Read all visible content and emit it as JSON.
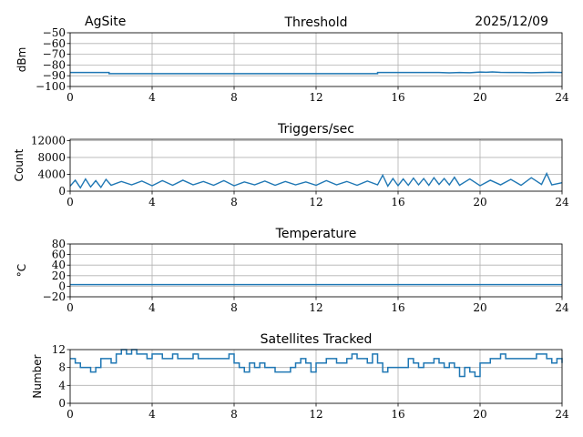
{
  "header": {
    "site": "AgSite",
    "date": "2025/12/09"
  },
  "colors": {
    "line": "#1f77b4",
    "grid": "#b0b0b0"
  },
  "chart_data": [
    {
      "type": "line",
      "title": "Threshold",
      "ylabel": "dBm",
      "xlim": [
        0,
        24
      ],
      "ylim": [
        -100,
        -50
      ],
      "grid": true,
      "xticks": [
        0,
        4,
        8,
        12,
        16,
        20,
        24
      ],
      "yticks": [
        -100,
        -90,
        -80,
        -70,
        -60,
        -50
      ],
      "ytick_labels": [
        "−100",
        "−90",
        "−80",
        "−70",
        "−60",
        "−50"
      ],
      "x": [
        0,
        1.9,
        1.9,
        15,
        15,
        18,
        18.5,
        19,
        19.5,
        20,
        20.3,
        20.6,
        21,
        21.5,
        22,
        22.5,
        23,
        23.5,
        24
      ],
      "values": [
        -87,
        -87,
        -88,
        -88,
        -87,
        -87,
        -87.3,
        -87,
        -87.2,
        -86.5,
        -86.8,
        -86.4,
        -86.9,
        -87,
        -87,
        -87.2,
        -87,
        -86.8,
        -87
      ]
    },
    {
      "type": "line",
      "title": "Triggers/sec",
      "ylabel": "Count",
      "xlim": [
        0,
        24
      ],
      "ylim": [
        0,
        12300
      ],
      "grid": true,
      "xticks": [
        0,
        4,
        8,
        12,
        16,
        20,
        24
      ],
      "yticks": [
        0,
        4000,
        8000,
        12000
      ],
      "ytick_labels": [
        "0",
        "4000",
        "8000",
        "12000"
      ],
      "x": [
        0,
        0.25,
        0.5,
        0.75,
        1,
        1.25,
        1.5,
        1.75,
        2,
        2.5,
        3,
        3.5,
        4,
        4.5,
        5,
        5.5,
        6,
        6.5,
        7,
        7.5,
        8,
        8.5,
        9,
        9.5,
        10,
        10.5,
        11,
        11.5,
        12,
        12.5,
        13,
        13.5,
        14,
        14.5,
        15,
        15.25,
        15.5,
        15.75,
        16,
        16.25,
        16.5,
        16.75,
        17,
        17.25,
        17.5,
        17.75,
        18,
        18.25,
        18.5,
        18.75,
        19,
        19.5,
        20,
        20.5,
        21,
        21.5,
        22,
        22.5,
        23,
        23.25,
        23.5,
        24
      ],
      "values": [
        1200,
        2600,
        800,
        2900,
        1000,
        2500,
        900,
        2800,
        1400,
        2300,
        1500,
        2400,
        1300,
        2500,
        1400,
        2600,
        1500,
        2300,
        1400,
        2500,
        1300,
        2200,
        1500,
        2400,
        1400,
        2300,
        1500,
        2200,
        1400,
        2500,
        1500,
        2300,
        1400,
        2400,
        1500,
        3800,
        1200,
        3000,
        1300,
        2900,
        1400,
        3100,
        1500,
        3000,
        1400,
        3200,
        1600,
        3000,
        1500,
        3300,
        1400,
        2900,
        1300,
        2600,
        1500,
        2800,
        1400,
        3200,
        1600,
        4200,
        1500,
        2000
      ]
    },
    {
      "type": "line",
      "title": "Temperature",
      "ylabel": "°C",
      "xlim": [
        0,
        24
      ],
      "ylim": [
        -20,
        80
      ],
      "grid": true,
      "xticks": [
        0,
        4,
        8,
        12,
        16,
        20,
        24
      ],
      "yticks": [
        -20,
        0,
        20,
        40,
        60,
        80
      ],
      "ytick_labels": [
        "−20",
        "0",
        "20",
        "40",
        "60",
        "80"
      ],
      "x": [
        0,
        24
      ],
      "values": [
        3,
        3
      ]
    },
    {
      "type": "line",
      "title": "Satellites Tracked",
      "ylabel": "Number",
      "xlim": [
        0,
        24
      ],
      "ylim": [
        0,
        12
      ],
      "grid": true,
      "xticks": [
        0,
        4,
        8,
        12,
        16,
        20,
        24
      ],
      "yticks": [
        0,
        4,
        8,
        12
      ],
      "ytick_labels": [
        "0",
        "4",
        "8",
        "12"
      ],
      "x_step": 0.25,
      "values": [
        10,
        9,
        8,
        8,
        7,
        8,
        10,
        10,
        9,
        11,
        12,
        11,
        12,
        11,
        11,
        10,
        11,
        11,
        10,
        10,
        11,
        10,
        10,
        10,
        11,
        10,
        10,
        10,
        10,
        10,
        10,
        11,
        9,
        8,
        7,
        9,
        8,
        9,
        8,
        8,
        7,
        7,
        7,
        8,
        9,
        10,
        9,
        7,
        9,
        9,
        10,
        10,
        9,
        9,
        10,
        11,
        10,
        10,
        9,
        11,
        9,
        7,
        8,
        8,
        8,
        8,
        10,
        9,
        8,
        9,
        9,
        10,
        9,
        8,
        9,
        8,
        6,
        8,
        7,
        6,
        9,
        9,
        10,
        10,
        11,
        10,
        10,
        10,
        10,
        10,
        10,
        11,
        11,
        10,
        9,
        10,
        9
      ]
    }
  ]
}
